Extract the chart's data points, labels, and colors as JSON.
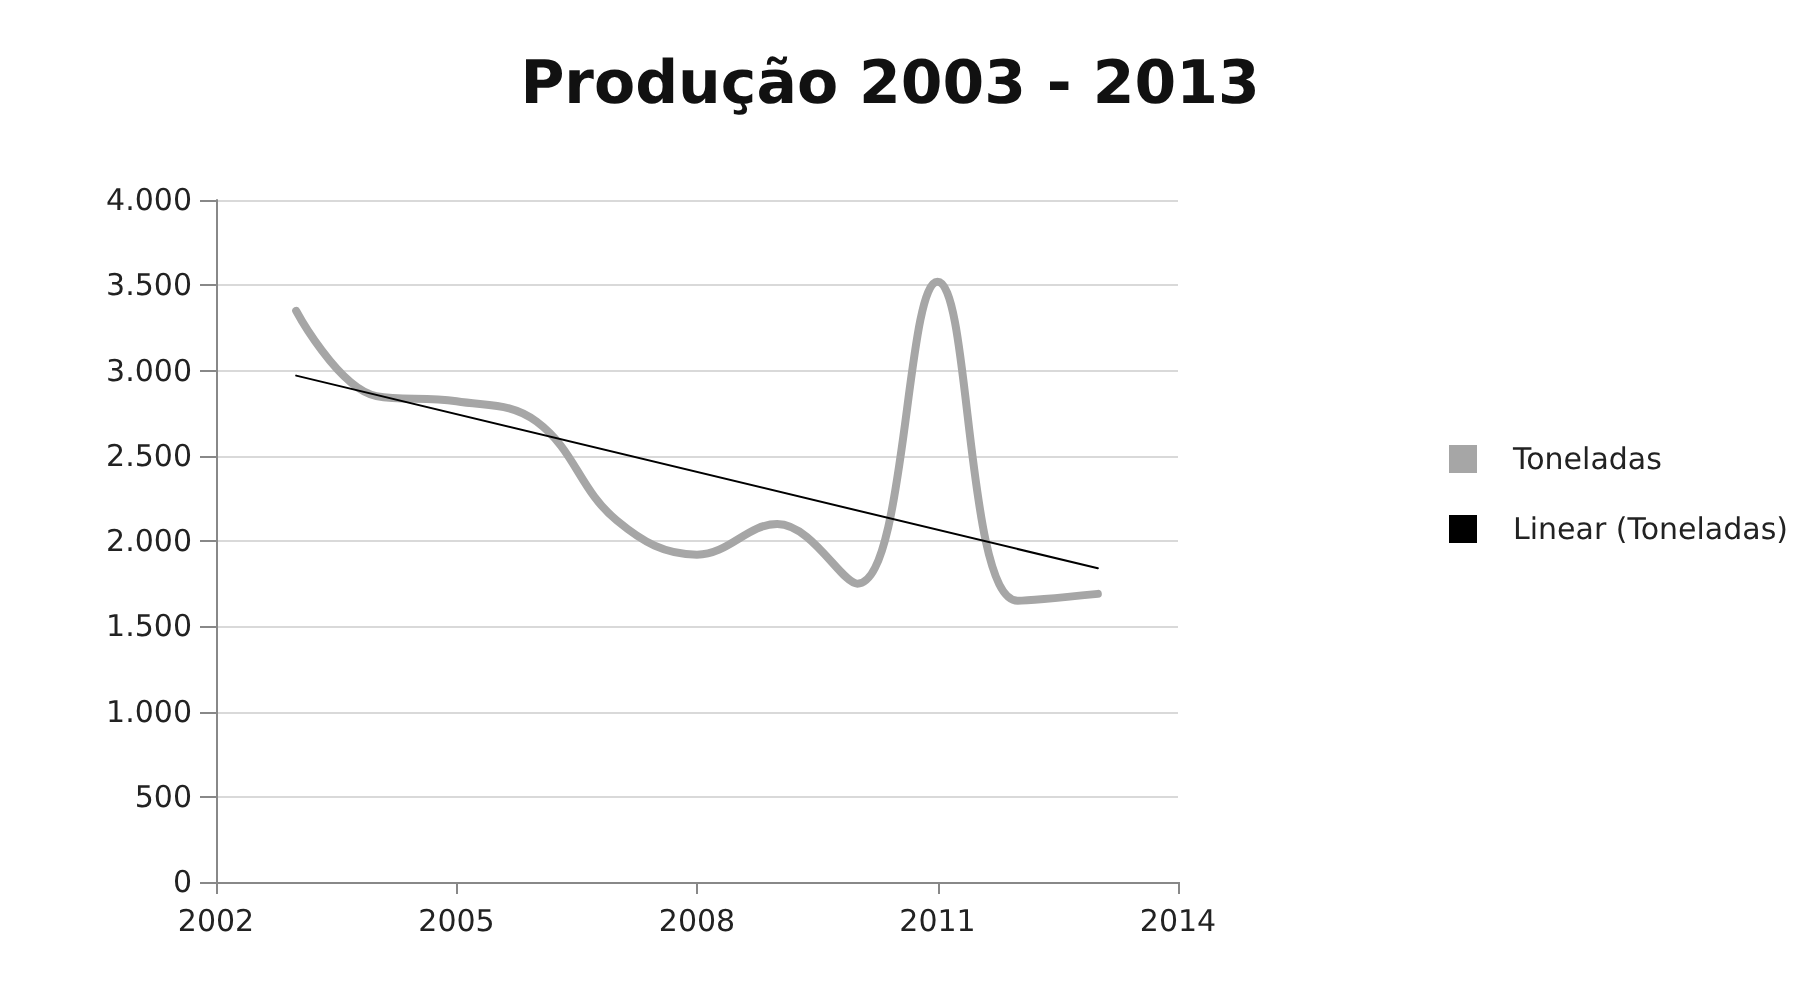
{
  "chart_data": {
    "type": "line",
    "title": "Produção 2003 - 2013",
    "x": [
      2003,
      2004,
      2005,
      2006,
      2007,
      2008,
      2009,
      2010,
      2011,
      2012,
      2013
    ],
    "series": [
      {
        "name": "Toneladas",
        "color": "#a6a6a6",
        "values": [
          3350,
          2850,
          2820,
          2700,
          2120,
          1920,
          2100,
          1750,
          3520,
          1650,
          1690
        ]
      },
      {
        "name": "Linear (Toneladas)",
        "type": "line",
        "color": "#000000",
        "x": [
          2003,
          2013
        ],
        "values": [
          2970,
          1840
        ]
      }
    ],
    "xlim": [
      2002,
      2014
    ],
    "xticks": [
      2002,
      2005,
      2008,
      2011,
      2014
    ],
    "ylim": [
      0,
      4000
    ],
    "yticks": [
      0,
      {
        "value": 500,
        "label": "500"
      },
      {
        "value": 1000,
        "label": "1.000"
      },
      {
        "value": 1500,
        "label": "1.500"
      },
      {
        "value": 2000,
        "label": "2.000"
      },
      {
        "value": 2500,
        "label": "2.500"
      },
      {
        "value": 3000,
        "label": "3.000"
      },
      {
        "value": 3500,
        "label": "3.500"
      },
      {
        "value": 4000,
        "label": "4.000"
      }
    ],
    "grid": "y",
    "legend": "right",
    "marker": "none",
    "line_style": "solid"
  }
}
